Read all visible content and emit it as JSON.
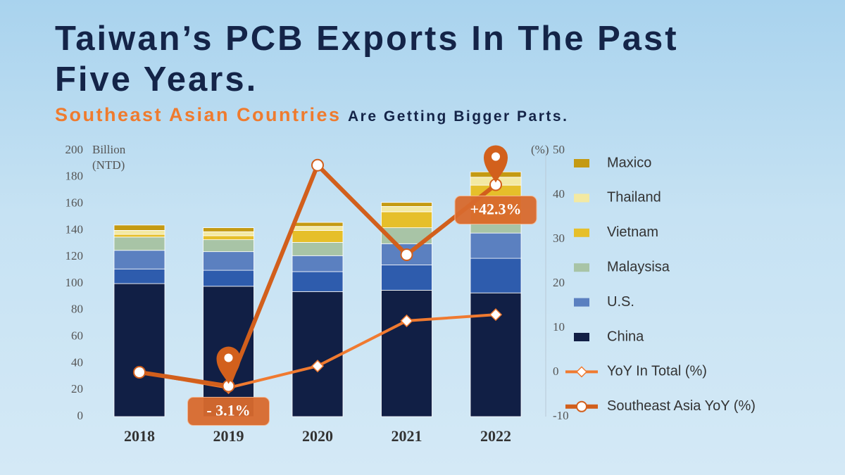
{
  "chart_data": {
    "type": "bar-line",
    "title": "Taiwan’s PCB Exports In The Past Five Years.",
    "subtitle_highlight": "Southeast Asian Countries",
    "subtitle_rest": "Are Getting Bigger Parts.",
    "ylabel": [
      "Billion",
      "(NTD)"
    ],
    "y2label": "(%)",
    "categories": [
      "2018",
      "2019",
      "2020",
      "2021",
      "2022"
    ],
    "ylim": [
      0,
      200
    ],
    "yticks": [
      0,
      20,
      40,
      60,
      80,
      100,
      120,
      140,
      160,
      180,
      200
    ],
    "y2lim": [
      -10,
      50
    ],
    "y2ticks": [
      -10,
      0,
      10,
      20,
      30,
      40,
      50
    ],
    "series": [
      {
        "name": "China",
        "color": "#111f45",
        "values": [
          100,
          98,
          94,
          95,
          93
        ]
      },
      {
        "color": "#2e5cad",
        "values": [
          11,
          12,
          15,
          19,
          26
        ]
      },
      {
        "name": "U.S.",
        "color": "#5b80c0",
        "values": [
          14,
          14,
          12,
          16,
          19
        ]
      },
      {
        "name": "Malaysisa",
        "color": "#a8c4a6",
        "values": [
          10,
          9,
          10,
          12,
          7
        ]
      },
      {
        "name": "Vietnam",
        "color": "#e6bf2a",
        "values": [
          2,
          3,
          9,
          12,
          29
        ]
      },
      {
        "name": "Thailand",
        "color": "#f3e9a2",
        "values": [
          3,
          3,
          3,
          4,
          6
        ]
      },
      {
        "name": "Maxico",
        "color": "#c49a12",
        "values": [
          4,
          3,
          3,
          3,
          4
        ]
      },
      {
        "name": "YoY In Total (%)",
        "type": "line",
        "axis": "y2",
        "marker": "diamond",
        "color": "#f07a30",
        "values": [
          0,
          -3.5,
          1.4,
          11.6,
          13
        ]
      },
      {
        "name": "Southeast Asia YoY (%)",
        "type": "line",
        "axis": "y2",
        "marker": "circle",
        "color": "#d25f1c",
        "values": [
          0,
          -3.1,
          46.7,
          26.5,
          42.3
        ],
        "value_labels": [
          null,
          "- 3.1%",
          null,
          null,
          "+42.3%"
        ]
      }
    ]
  }
}
